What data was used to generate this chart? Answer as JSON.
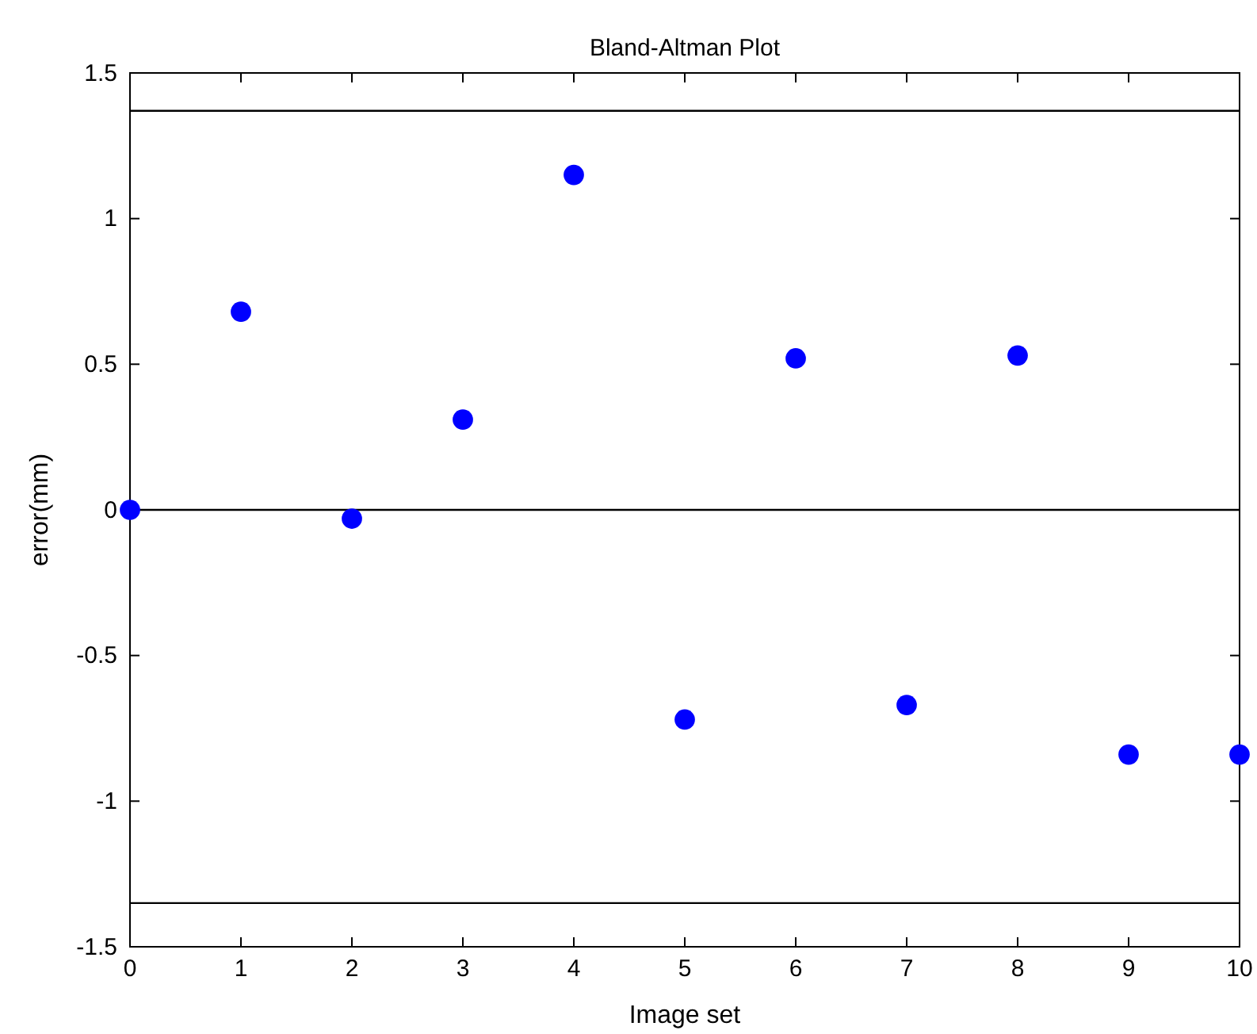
{
  "chart_data": {
    "type": "scatter",
    "title": "Bland-Altman Plot",
    "xlabel": "Image set",
    "ylabel": "error(mm)",
    "x": [
      0,
      1,
      2,
      3,
      4,
      5,
      6,
      7,
      8,
      9,
      10
    ],
    "series": [
      {
        "color": "#0000ff",
        "values": [
          0.0,
          0.68,
          -0.03,
          0.31,
          1.15,
          -0.72,
          0.52,
          -0.67,
          0.53,
          -0.84,
          -0.84
        ]
      }
    ],
    "xlim": [
      0,
      10
    ],
    "xticks": [
      0,
      1,
      2,
      3,
      4,
      5,
      6,
      7,
      8,
      9,
      10
    ],
    "ylim": [
      -1.5,
      1.5
    ],
    "yticks": [
      {
        "value": -1.5,
        "label": "-1.5"
      },
      -1,
      {
        "value": -0.5,
        "label": "-0.5"
      },
      0,
      0.5,
      1,
      1.5
    ],
    "ref_lines": [
      {
        "axis": "y",
        "value": 1.37,
        "color": "#000000"
      },
      {
        "axis": "y",
        "value": 0,
        "color": "#000000"
      },
      {
        "axis": "y",
        "value": -1.35,
        "color": "#000000"
      }
    ],
    "marker": "circle",
    "grid": false
  }
}
